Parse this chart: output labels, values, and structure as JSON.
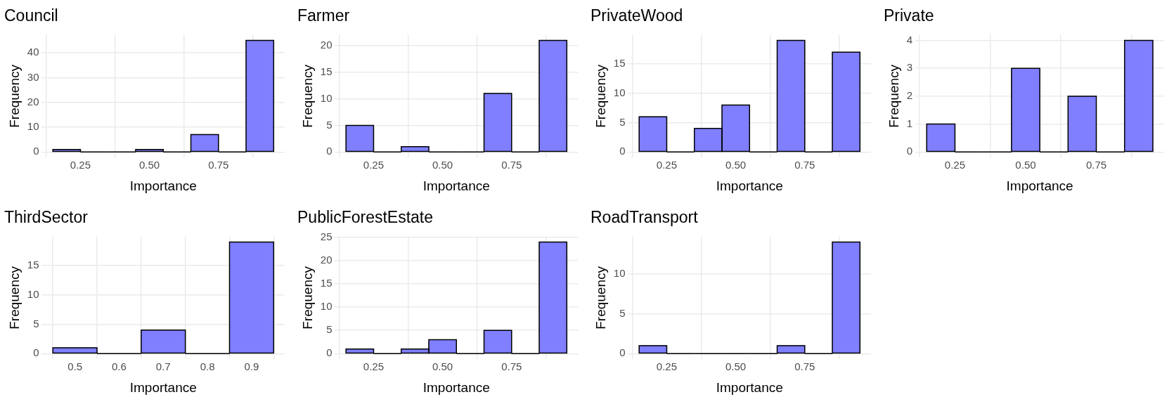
{
  "chart_data": [
    {
      "type": "histogram",
      "title": "Council",
      "xlabel": "Importance",
      "ylabel": "Frequency",
      "bins": [
        0.15,
        0.25,
        0.35,
        0.45,
        0.55,
        0.65,
        0.75,
        0.85,
        0.95
      ],
      "values": [
        1,
        0,
        0,
        1,
        0,
        7,
        0,
        45
      ],
      "color": "#7f7fff",
      "xlim": [
        0.11,
        0.99
      ],
      "xticks": [
        {
          "value": 0.25,
          "label": "0.25"
        },
        {
          "value": 0.5,
          "label": "0.50"
        },
        {
          "value": 0.75,
          "label": "0.75"
        }
      ],
      "ylim": [
        -2.25,
        47.25
      ],
      "yticks": [
        0,
        10,
        20,
        30,
        40
      ],
      "grid": true
    },
    {
      "type": "histogram",
      "title": "Farmer",
      "xlabel": "Importance",
      "ylabel": "Frequency",
      "bins": [
        0.15,
        0.25,
        0.35,
        0.45,
        0.55,
        0.65,
        0.75,
        0.85,
        0.95
      ],
      "values": [
        5,
        0,
        1,
        0,
        0,
        11,
        0,
        21
      ],
      "color": "#7f7fff",
      "xlim": [
        0.11,
        0.99
      ],
      "xticks": [
        {
          "value": 0.25,
          "label": "0.25"
        },
        {
          "value": 0.5,
          "label": "0.50"
        },
        {
          "value": 0.75,
          "label": "0.75"
        }
      ],
      "ylim": [
        -1.05,
        22.05
      ],
      "yticks": [
        0,
        5,
        10,
        15,
        20
      ],
      "grid": true
    },
    {
      "type": "histogram",
      "title": "PrivateWood",
      "xlabel": "Importance",
      "ylabel": "Frequency",
      "bins": [
        0.15,
        0.25,
        0.35,
        0.45,
        0.55,
        0.65,
        0.75,
        0.85,
        0.95
      ],
      "values": [
        6,
        0,
        4,
        8,
        0,
        19,
        0,
        17
      ],
      "color": "#7f7fff",
      "xlim": [
        0.11,
        0.99
      ],
      "xticks": [
        {
          "value": 0.25,
          "label": "0.25"
        },
        {
          "value": 0.5,
          "label": "0.50"
        },
        {
          "value": 0.75,
          "label": "0.75"
        }
      ],
      "ylim": [
        -0.95,
        19.95
      ],
      "yticks": [
        0,
        5,
        10,
        15
      ],
      "grid": true
    },
    {
      "type": "histogram",
      "title": "Private",
      "xlabel": "Importance",
      "ylabel": "Frequency",
      "bins": [
        0.15,
        0.25,
        0.35,
        0.45,
        0.55,
        0.65,
        0.75,
        0.85,
        0.95
      ],
      "values": [
        1,
        0,
        0,
        3,
        0,
        2,
        0,
        4
      ],
      "color": "#7f7fff",
      "xlim": [
        0.11,
        0.99
      ],
      "xticks": [
        {
          "value": 0.25,
          "label": "0.25"
        },
        {
          "value": 0.5,
          "label": "0.50"
        },
        {
          "value": 0.75,
          "label": "0.75"
        }
      ],
      "ylim": [
        -0.2,
        4.2
      ],
      "yticks": [
        0,
        1,
        2,
        3,
        4
      ],
      "grid": true
    },
    {
      "type": "histogram",
      "title": "ThirdSector",
      "xlabel": "Importance",
      "ylabel": "Frequency",
      "bins": [
        0.45,
        0.55,
        0.65,
        0.75,
        0.85,
        0.95
      ],
      "values": [
        1,
        0,
        4,
        0,
        19
      ],
      "color": "#7f7fff",
      "xlim": [
        0.425,
        0.975
      ],
      "xticks": [
        0.5,
        0.6,
        0.7,
        0.8,
        0.9
      ],
      "ylim": [
        -0.95,
        19.95
      ],
      "yticks": [
        0,
        5,
        10,
        15
      ],
      "grid": true
    },
    {
      "type": "histogram",
      "title": "PublicForestEstate",
      "xlabel": "Importance",
      "ylabel": "Frequency",
      "bins": [
        0.15,
        0.25,
        0.35,
        0.45,
        0.55,
        0.65,
        0.75,
        0.85,
        0.95
      ],
      "values": [
        1,
        0,
        1,
        3,
        0,
        5,
        0,
        24
      ],
      "color": "#7f7fff",
      "xlim": [
        0.11,
        0.99
      ],
      "xticks": [
        {
          "value": 0.25,
          "label": "0.25"
        },
        {
          "value": 0.5,
          "label": "0.50"
        },
        {
          "value": 0.75,
          "label": "0.75"
        }
      ],
      "ylim": [
        -1.2,
        25.2
      ],
      "yticks": [
        0,
        5,
        10,
        15,
        20,
        25
      ],
      "grid": true
    },
    {
      "type": "histogram",
      "title": "RoadTransport",
      "xlabel": "Importance",
      "ylabel": "Frequency",
      "bins": [
        0.15,
        0.25,
        0.35,
        0.45,
        0.55,
        0.65,
        0.75,
        0.85,
        0.95
      ],
      "values": [
        1,
        0,
        0,
        0,
        0,
        1,
        0,
        14
      ],
      "color": "#7f7fff",
      "xlim": [
        0.11,
        0.99
      ],
      "xticks": [
        {
          "value": 0.25,
          "label": "0.25"
        },
        {
          "value": 0.5,
          "label": "0.50"
        },
        {
          "value": 0.75,
          "label": "0.75"
        }
      ],
      "ylim": [
        -0.7,
        14.7
      ],
      "yticks": [
        0,
        5,
        10
      ],
      "grid": true
    }
  ]
}
